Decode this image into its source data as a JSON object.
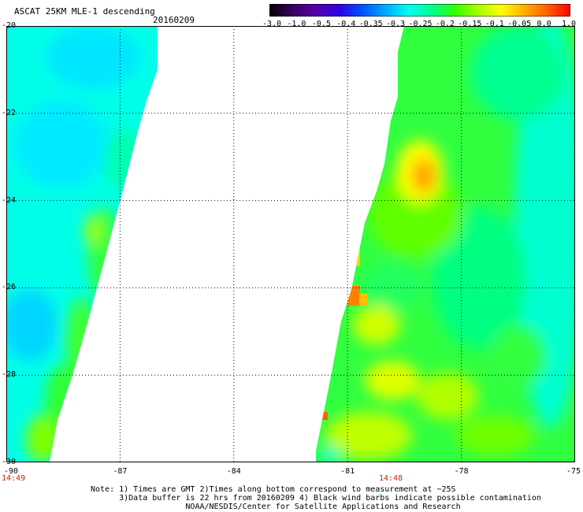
{
  "header": {
    "title": "ASCAT 25KM MLE-1 descending",
    "date": "20160209"
  },
  "colorbar": {
    "labels": [
      "-3.0",
      "-1.0",
      "-0.5",
      "-0.4",
      "-0.35",
      "-0.3",
      "-0.25",
      "-0.2",
      "-0.15",
      "-0.1",
      "-0.05",
      "0.0",
      "1.0"
    ],
    "colors": [
      "#000000",
      "#3a0060",
      "#5500aa",
      "#2d00e0",
      "#0050ff",
      "#00a8ff",
      "#00ffee",
      "#00ff90",
      "#30ff00",
      "#a8ff00",
      "#ffff00",
      "#ffb000",
      "#ff6000",
      "#ff0000"
    ]
  },
  "axes": {
    "lat_labels": [
      "-20",
      "-22",
      "-24",
      "-26",
      "-28",
      "-30"
    ],
    "lon_labels": [
      "-90",
      "-87",
      "-84",
      "-81",
      "-78",
      "-75"
    ],
    "time_labels": [
      "14:49",
      "14:48"
    ]
  },
  "notes": {
    "line1": "Note: 1) Times are GMT 2)Times along bottom correspond to measurement at ~25S",
    "line2": "      3)Data buffer is 22 hrs from 20160209 4) Black wind barbs indicate possible contamination",
    "line3": "                    NOAA/NESDIS/Center for Satellite Applications and Research"
  }
}
